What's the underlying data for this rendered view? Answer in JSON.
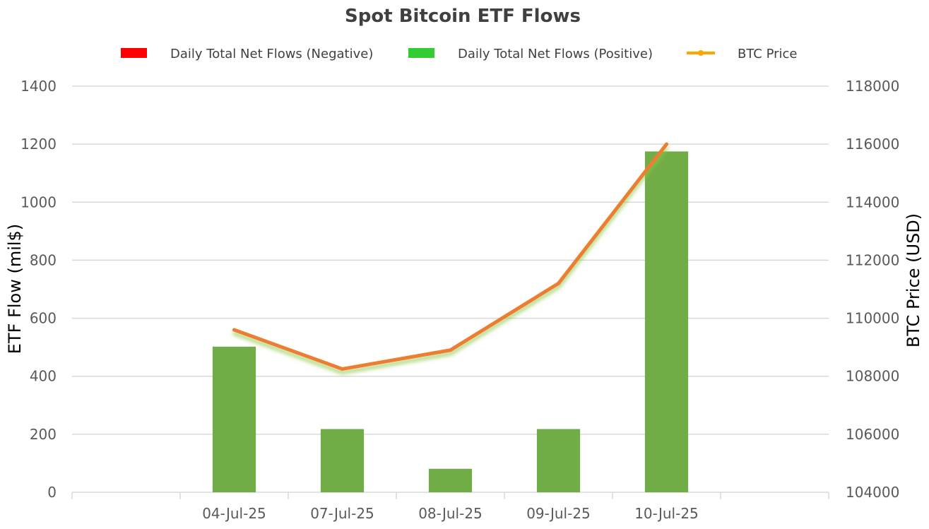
{
  "chart_data": {
    "type": "bar",
    "title": "Spot Bitcoin ETF Flows",
    "categories": [
      "",
      "04-Jul-25",
      "07-Jul-25",
      "08-Jul-25",
      "09-Jul-25",
      "10-Jul-25",
      ""
    ],
    "series": [
      {
        "name": "Daily Total Net Flows (Negative)",
        "type": "bar",
        "axis": "left",
        "color": "#ff0000",
        "values": [
          null,
          null,
          null,
          null,
          null,
          null,
          null
        ]
      },
      {
        "name": "Daily Total Net Flows (Positive)",
        "type": "bar",
        "axis": "left",
        "color": "#70ad47",
        "legend_color": "#33cc33",
        "values": [
          null,
          502,
          218,
          81,
          218,
          1175,
          null
        ]
      },
      {
        "name": "BTC Price",
        "type": "line",
        "axis": "right",
        "color": "#ed7d31",
        "legend_color": "#ffa500",
        "values": [
          null,
          109600,
          108250,
          108900,
          111200,
          116000,
          null
        ]
      }
    ],
    "ylabel": "ETF Flow (mil$)",
    "ylabel_right": "BTC Price (USD)",
    "ylim": [
      0,
      1400
    ],
    "ylim_right": [
      104000,
      118000
    ],
    "yticks": [
      0,
      200,
      400,
      600,
      800,
      1000,
      1200,
      1400
    ],
    "yticks_right": [
      104000,
      106000,
      108000,
      110000,
      112000,
      114000,
      116000,
      118000
    ],
    "grid": true,
    "legend_position": "top-center"
  }
}
